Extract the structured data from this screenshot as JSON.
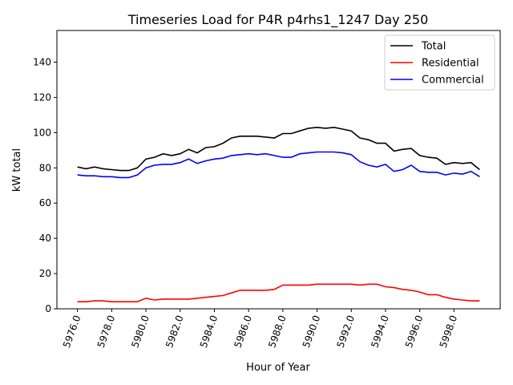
{
  "chart_data": {
    "type": "line",
    "title": "Timeseries Load for P4R p4rhs1_1247  Day 250",
    "xlabel": "Hour of Year",
    "ylabel": "kW total",
    "xlim": [
      5974.8,
      6000.7
    ],
    "ylim": [
      0,
      158
    ],
    "xticks": [
      5976,
      5978,
      5980,
      5982,
      5984,
      5986,
      5988,
      5990,
      5992,
      5994,
      5996,
      5998
    ],
    "xtick_labels": [
      "5976.0",
      "5978.0",
      "5980.0",
      "5982.0",
      "5984.0",
      "5986.0",
      "5988.0",
      "5990.0",
      "5992.0",
      "5994.0",
      "5996.0",
      "5998.0"
    ],
    "yticks": [
      0,
      20,
      40,
      60,
      80,
      100,
      120,
      140
    ],
    "ytick_labels": [
      "0",
      "20",
      "40",
      "60",
      "80",
      "100",
      "120",
      "140"
    ],
    "legend_position": "top-right",
    "x_start": 5976,
    "x_step": 0.5,
    "series": [
      {
        "name": "Total",
        "color": "#000000",
        "values": [
          80.5,
          79.5,
          80.5,
          79.5,
          79,
          78.5,
          78.5,
          80,
          85,
          86,
          88,
          87,
          88,
          90.5,
          88.5,
          91.5,
          92,
          94,
          97,
          98,
          98,
          98,
          97.5,
          97,
          99.5,
          99.5,
          101,
          102.5,
          103,
          102.5,
          103,
          102,
          101,
          97,
          96,
          94,
          94,
          89.5,
          90.5,
          91,
          87,
          86,
          85.5,
          82,
          83,
          82.5,
          83,
          79
        ]
      },
      {
        "name": "Residential",
        "color": "#ff0000",
        "values": [
          4,
          4,
          4.5,
          4.5,
          4,
          4,
          4,
          4,
          6,
          5,
          5.5,
          5.5,
          5.5,
          5.5,
          6,
          6.5,
          7,
          7.5,
          9,
          10.5,
          10.5,
          10.5,
          10.5,
          11,
          13.5,
          13.5,
          13.5,
          13.5,
          14,
          14,
          14,
          14,
          14,
          13.5,
          14,
          14,
          12.5,
          12,
          11,
          10.5,
          9.5,
          8,
          8,
          6.5,
          5.5,
          5,
          4.5,
          4.5
        ]
      },
      {
        "name": "Commercial",
        "color": "#0000ff",
        "values": [
          76,
          75.5,
          75.5,
          75,
          75,
          74.5,
          74.5,
          76,
          80,
          81.5,
          82,
          82,
          83,
          85,
          82.5,
          84,
          85,
          85.5,
          87,
          87.5,
          88,
          87.5,
          88,
          87,
          86,
          86,
          88,
          88.5,
          89,
          89,
          89,
          88.5,
          87.5,
          83.5,
          81.5,
          80.5,
          82,
          78,
          79,
          81.5,
          78,
          77.5,
          77.5,
          76,
          77,
          76.5,
          78,
          75
        ]
      }
    ]
  }
}
